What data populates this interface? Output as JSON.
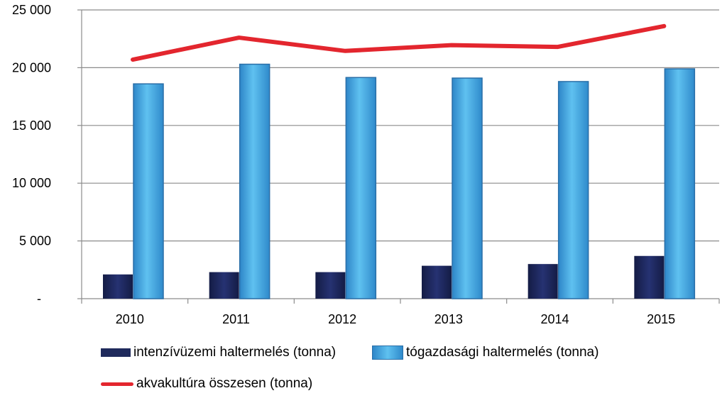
{
  "chart_data": {
    "type": "bar",
    "title": "",
    "xlabel": "",
    "ylabel": "",
    "categories": [
      "2010",
      "2011",
      "2012",
      "2013",
      "2014",
      "2015"
    ],
    "ylim": [
      0,
      25000
    ],
    "yticks": [
      0,
      5000,
      10000,
      15000,
      20000,
      25000
    ],
    "ytick_labels": [
      "-",
      "5 000",
      "10 000",
      "15 000",
      "20 000",
      "25 000"
    ],
    "grid": true,
    "legend_position": "bottom",
    "series": [
      {
        "name": "intenzívüzemi haltermelés (tonna)",
        "kind": "bar",
        "color": "#1f2a5c",
        "values": [
          2100,
          2300,
          2300,
          2850,
          3000,
          3700
        ]
      },
      {
        "name": "tógazdasági haltermelés (tonna)",
        "kind": "bar",
        "color": "#4fb3ea",
        "values": [
          18600,
          20300,
          19150,
          19100,
          18800,
          19900
        ]
      },
      {
        "name": "akvakultúra összesen (tonna)",
        "kind": "line",
        "color": "#e3262e",
        "values": [
          20700,
          22600,
          21450,
          21950,
          21800,
          23600
        ]
      }
    ]
  }
}
